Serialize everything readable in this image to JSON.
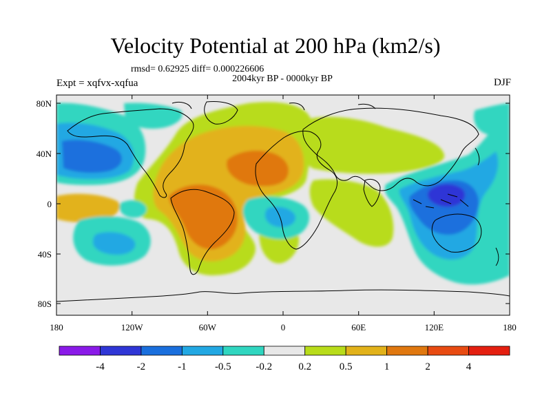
{
  "title": "Velocity Potential at 200 hPa (km2/s)",
  "stats": "rmsd= 0.62925 diff= 0.000226606",
  "subtitle": "2004kyr BP - 0000kyr BP",
  "left_label": "Expt = xqfvx-xqfua",
  "season": "DJF",
  "axes": {
    "x_ticks": [
      "180",
      "120W",
      "60W",
      "0",
      "60E",
      "120E",
      "180"
    ],
    "y_ticks": [
      "80N",
      "40N",
      "0",
      "40S",
      "80S"
    ]
  },
  "colorbar": {
    "labels": [
      "-4",
      "-2",
      "-1",
      "-0.5",
      "-0.2",
      "0.2",
      "0.5",
      "1",
      "2",
      "4"
    ],
    "colors": [
      "#8a1ae8",
      "#2f36d6",
      "#1a6fdd",
      "#22a8e3",
      "#30d6c0",
      "#e8e8e8",
      "#b8dc1a",
      "#e2b21a",
      "#e0780f",
      "#e84b12",
      "#e41f10"
    ]
  },
  "colors": {
    "background": "#e8e8e8",
    "neg_weak": "#30d6c0",
    "neg_mid": "#22a8e3",
    "neg_strong": "#1a6fdd",
    "neg_stronger": "#2f36d6",
    "pos_weak": "#b8dc1a",
    "pos_mid": "#e2b21a",
    "pos_strong": "#e0780f"
  }
}
